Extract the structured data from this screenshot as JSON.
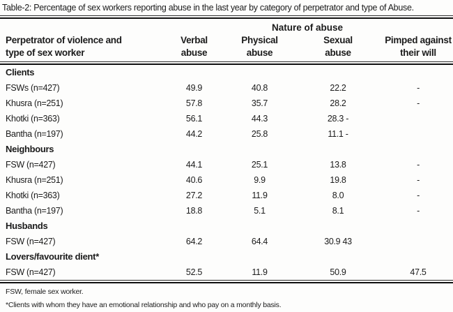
{
  "title": "Table-2: Percentage of sex workers reporting abuse in the last year by category of perpetrator and type of Abuse.",
  "header": {
    "group": "Nature of abuse",
    "col1": {
      "line1": "Perpetrator of violence and",
      "line2": "type of sex worker"
    },
    "columns": [
      {
        "line1": "Verbal",
        "line2": "abuse"
      },
      {
        "line1": "Physical",
        "line2": "abuse"
      },
      {
        "line1": "Sexual",
        "line2": "abuse"
      },
      {
        "line1": "Pimped against",
        "line2": "their will"
      }
    ]
  },
  "rows": [
    {
      "type": "section",
      "label": "Clients",
      "verbal": "",
      "physical": "",
      "sexual": "",
      "pimped": ""
    },
    {
      "type": "data",
      "label": "FSWs (n=427)",
      "verbal": "49.9",
      "physical": "40.8",
      "sexual": "22.2",
      "pimped": "-"
    },
    {
      "type": "data",
      "label": "Khusra (n=251)",
      "verbal": "57.8",
      "physical": "35.7",
      "sexual": "28.2",
      "pimped": "-"
    },
    {
      "type": "data",
      "label": "Khotki (n=363)",
      "verbal": "56.1",
      "physical": "44.3",
      "sexual": "28.3 -",
      "pimped": ""
    },
    {
      "type": "data",
      "label": "Bantha (n=197)",
      "verbal": "44.2",
      "physical": "25.8",
      "sexual": "11.1 -",
      "pimped": ""
    },
    {
      "type": "section",
      "label": "Neighbours",
      "verbal": "",
      "physical": "",
      "sexual": "",
      "pimped": ""
    },
    {
      "type": "data",
      "label": "FSW (n=427)",
      "verbal": "44.1",
      "physical": "25.1",
      "sexual": "13.8",
      "pimped": "-"
    },
    {
      "type": "data",
      "label": "Khusra (n=251)",
      "verbal": "40.6",
      "physical": "9.9",
      "sexual": "19.8",
      "pimped": "-"
    },
    {
      "type": "data",
      "label": "Khotki (n=363)",
      "verbal": "27.2",
      "physical": "11.9",
      "sexual": "8.0",
      "pimped": "-"
    },
    {
      "type": "data",
      "label": "Bantha (n=197)",
      "verbal": "18.8",
      "physical": "5.1",
      "sexual": "8.1",
      "pimped": "-"
    },
    {
      "type": "section",
      "label": "Husbands",
      "verbal": "",
      "physical": "",
      "sexual": "",
      "pimped": ""
    },
    {
      "type": "data",
      "label": "FSW (n=427)",
      "verbal": "64.2",
      "physical": "64.4",
      "sexual": "30.9 43",
      "pimped": ""
    },
    {
      "type": "section",
      "label": "Lovers/favourite dient*",
      "verbal": "",
      "physical": "",
      "sexual": "",
      "pimped": ""
    },
    {
      "type": "data",
      "label": "FSW (n=427)",
      "verbal": "52.5",
      "physical": "11.9",
      "sexual": "50.9",
      "pimped": "47.5"
    }
  ],
  "footnotes": [
    "FSW, female sex worker.",
    "*Clients with whom they have an emotional relationship and who pay on a monthly basis."
  ]
}
